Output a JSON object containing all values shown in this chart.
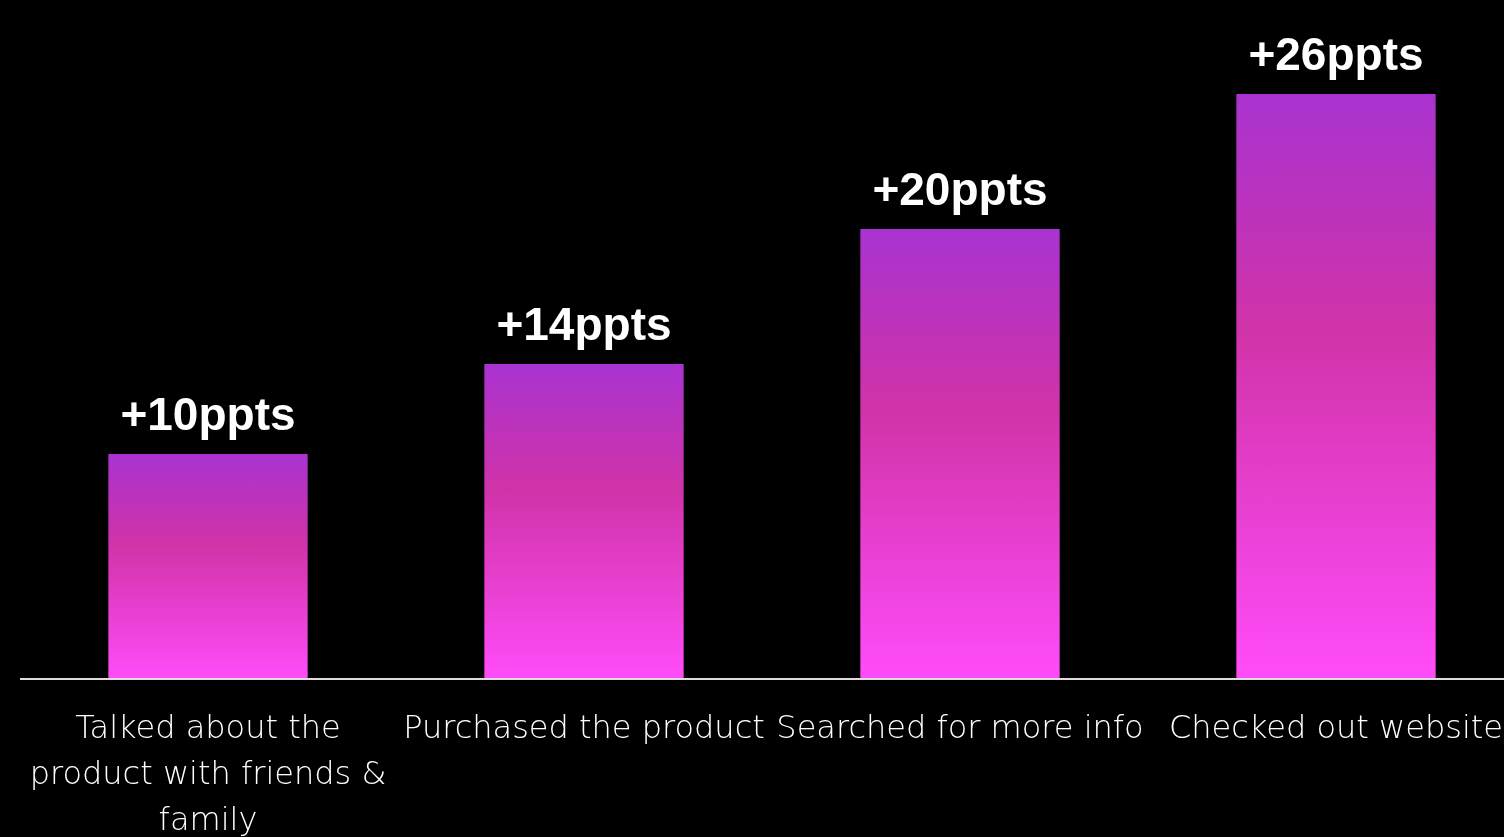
{
  "chart_data": {
    "type": "bar",
    "categories": [
      "Talked about the product with friends & family",
      "Purchased the product",
      "Searched for more info",
      "Checked out website"
    ],
    "values": [
      10,
      14,
      20,
      26
    ],
    "value_labels": [
      "+10ppts",
      "+14ppts",
      "+20ppts",
      "+26ppts"
    ],
    "color": "#d033a8"
  }
}
